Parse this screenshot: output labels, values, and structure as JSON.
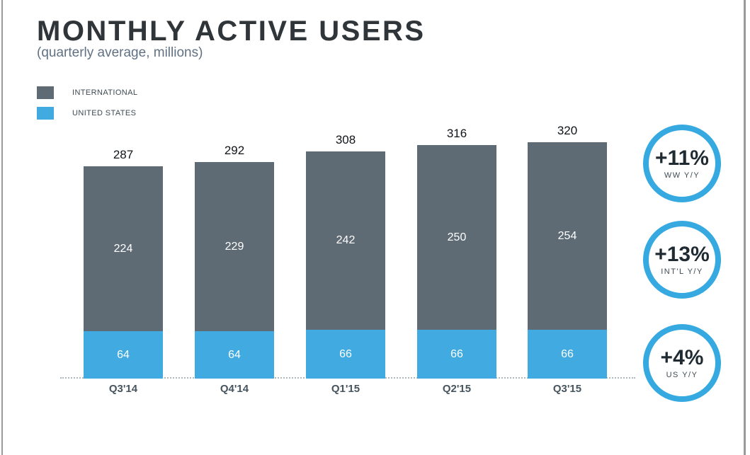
{
  "header": {
    "title": "MONTHLY ACTIVE USERS",
    "subtitle": "(quarterly average, millions)"
  },
  "legend": {
    "items": [
      {
        "label": "INTERNATIONAL",
        "color": "#5e6a74"
      },
      {
        "label": "UNITED STATES",
        "color": "#41abe1"
      }
    ]
  },
  "chart_data": {
    "type": "bar",
    "stacked": true,
    "title": "MONTHLY ACTIVE USERS",
    "subtitle": "(quarterly average, millions)",
    "unit": "millions",
    "categories": [
      "Q3'14",
      "Q4'14",
      "Q1'15",
      "Q2'15",
      "Q3'15"
    ],
    "series": [
      {
        "name": "INTERNATIONAL",
        "color": "#5e6a74",
        "values": [
          224,
          229,
          242,
          250,
          254
        ]
      },
      {
        "name": "UNITED STATES",
        "color": "#41abe1",
        "values": [
          64,
          64,
          66,
          66,
          66
        ]
      }
    ],
    "totals": [
      287,
      292,
      308,
      316,
      320
    ],
    "ylim": [
      0,
      340
    ],
    "grid": false,
    "baseline_style": "dotted",
    "legend_position": "top-left",
    "value_labels": "inside-segments-and-total-above"
  },
  "badges": [
    {
      "value": "+11%",
      "label": "WW Y/Y"
    },
    {
      "value": "+13%",
      "label": "INT'L Y/Y"
    },
    {
      "value": "+4%",
      "label": "US Y/Y"
    }
  ],
  "colors": {
    "accent_blue": "#36a9e1",
    "bar_international": "#5e6a74",
    "bar_united_states": "#41abe1",
    "title_text": "#30353a",
    "subtitle_text": "#617183",
    "axis_label_text": "#47555f",
    "page_edge": "#9a9a9a"
  }
}
